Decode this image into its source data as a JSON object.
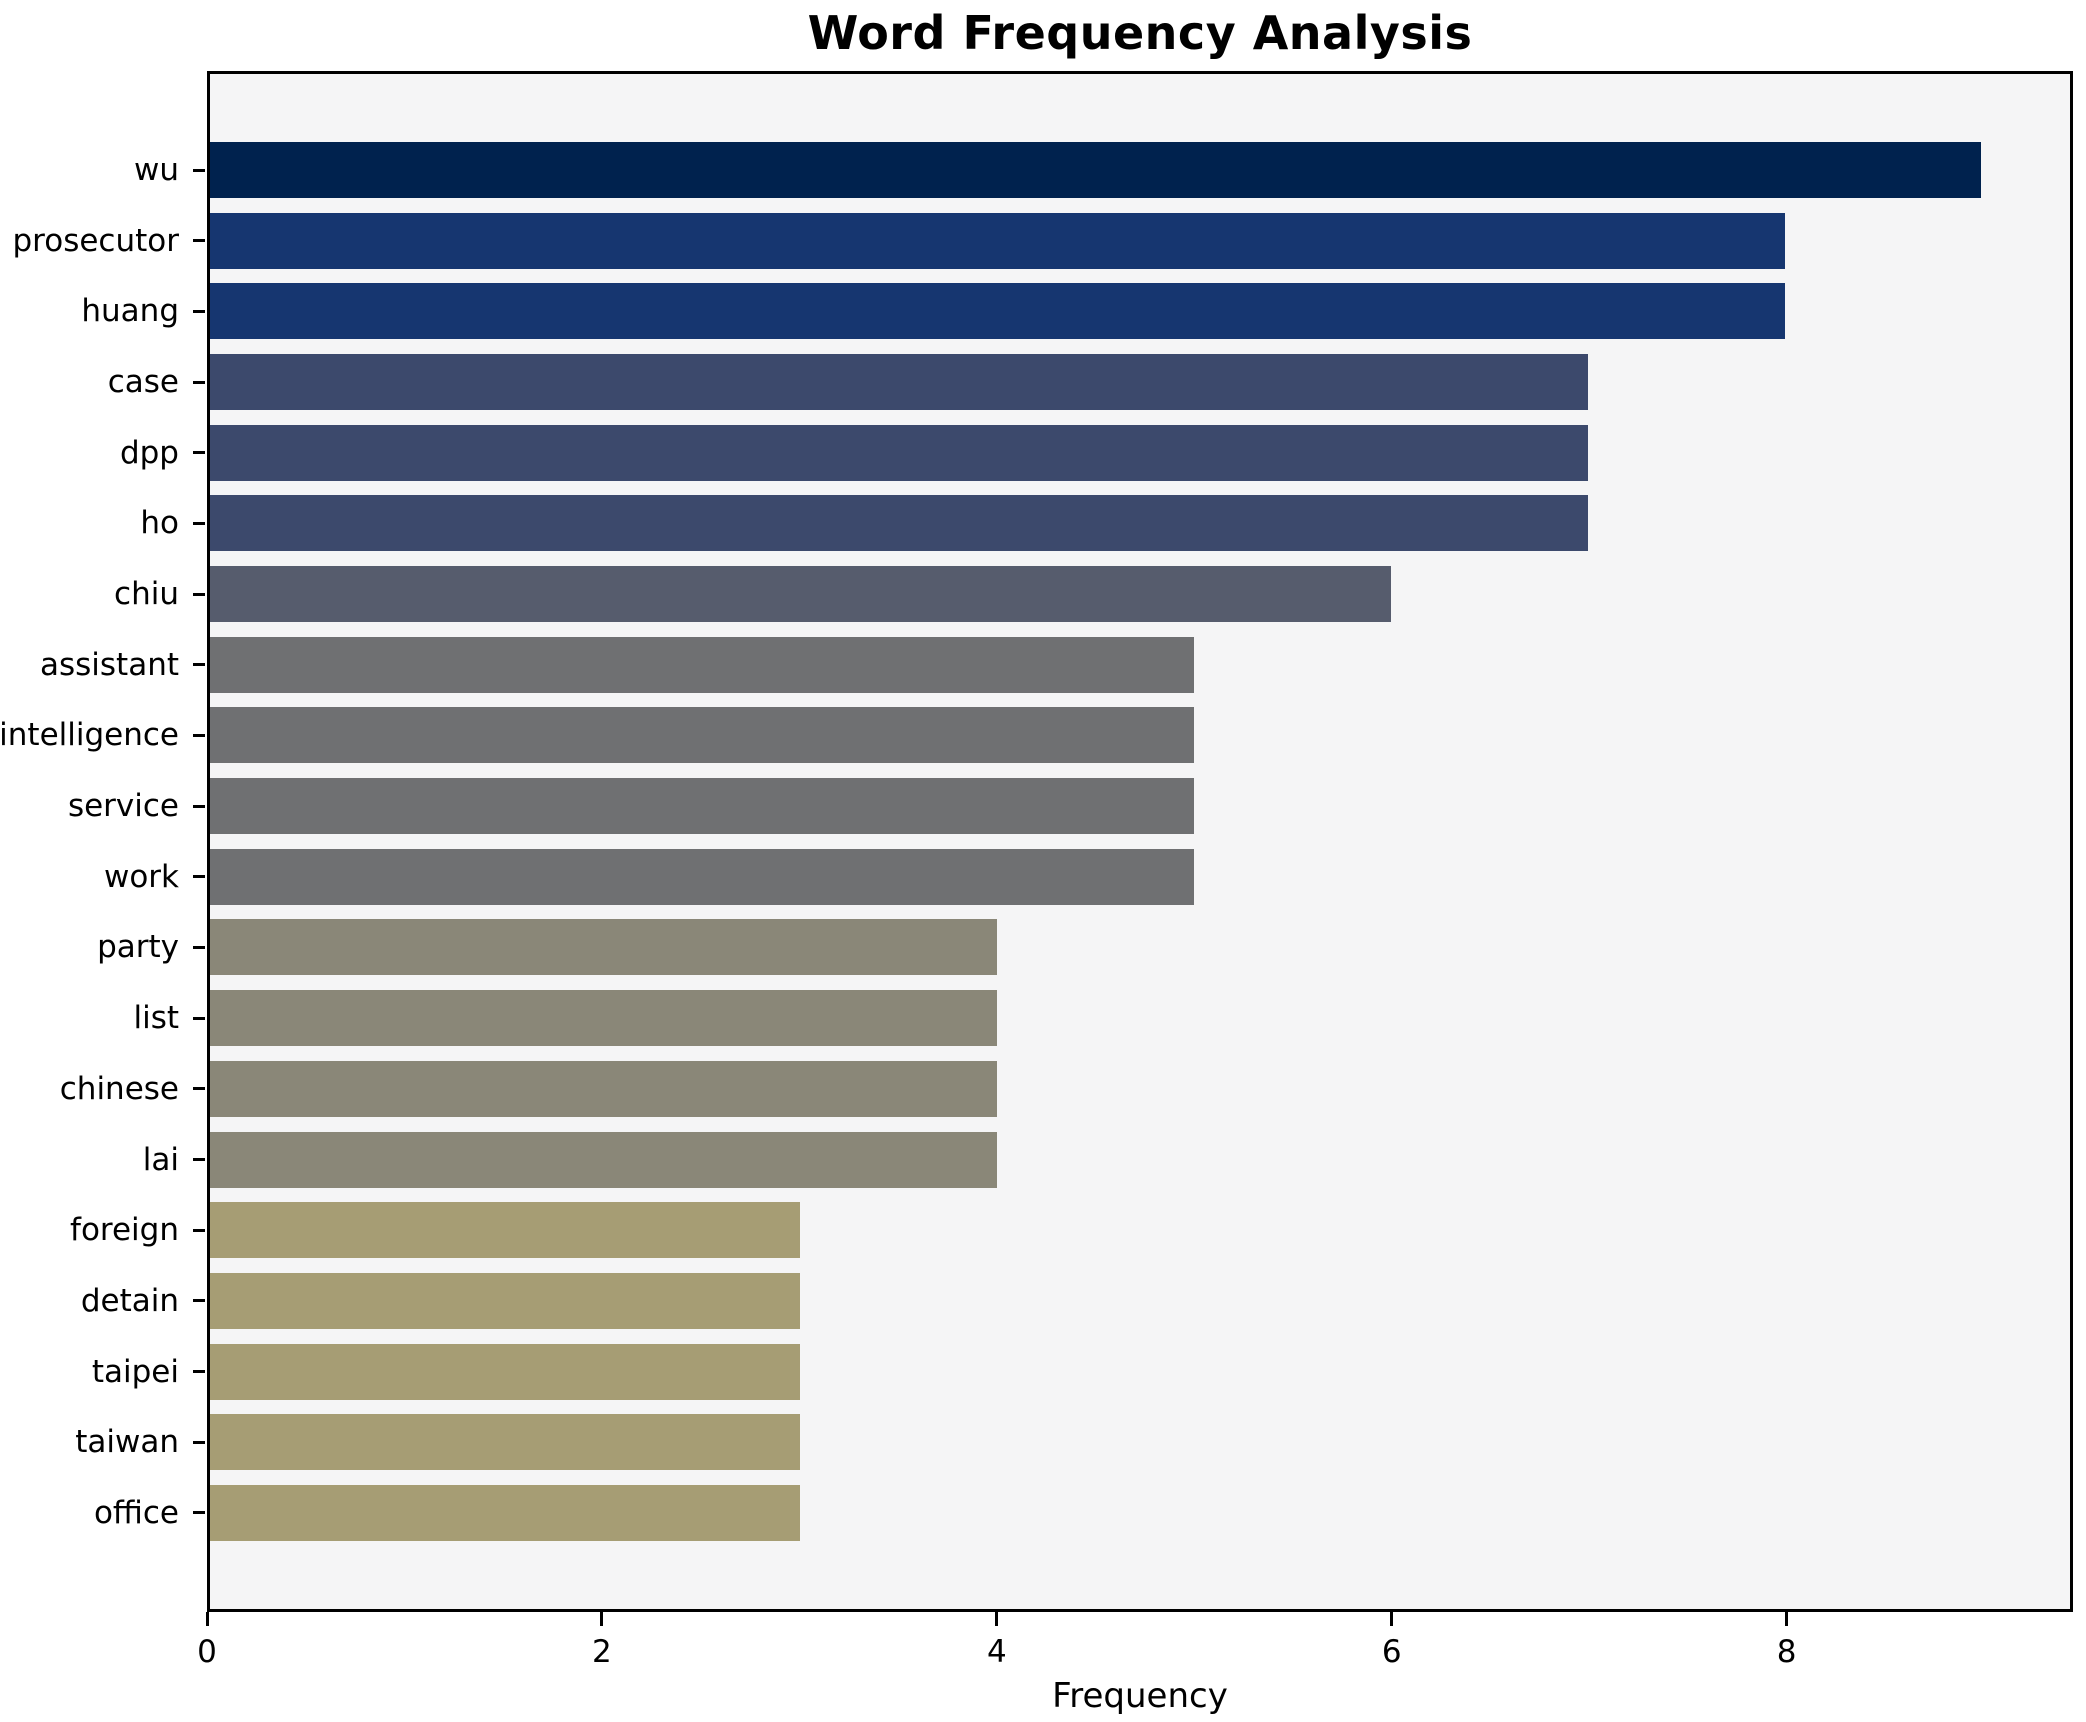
{
  "title": "Word Frequency Analysis",
  "chart_data": {
    "type": "bar",
    "orientation": "horizontal",
    "title": "Word Frequency Analysis",
    "xlabel": "Frequency",
    "ylabel": "",
    "categories": [
      "wu",
      "prosecutor",
      "huang",
      "case",
      "dpp",
      "ho",
      "chiu",
      "assistant",
      "intelligence",
      "service",
      "work",
      "party",
      "list",
      "chinese",
      "lai",
      "foreign",
      "detain",
      "taipei",
      "taiwan",
      "office"
    ],
    "values": [
      9,
      8,
      8,
      7,
      7,
      7,
      6,
      5,
      5,
      5,
      5,
      4,
      4,
      4,
      4,
      3,
      3,
      3,
      3,
      3
    ],
    "bar_colors": [
      "#00224e",
      "#163670",
      "#163670",
      "#3c496c",
      "#3c496c",
      "#3c496c",
      "#565c6d",
      "#6f7072",
      "#6f7072",
      "#6f7072",
      "#6f7072",
      "#8a8778",
      "#8a8778",
      "#8a8778",
      "#8a8778",
      "#a69d74",
      "#a69d74",
      "#a69d74",
      "#a69d74",
      "#a69d74"
    ],
    "xlim": [
      0,
      9.45
    ],
    "xticks": [
      0,
      2,
      4,
      6,
      8
    ],
    "grid": false,
    "legend": false,
    "plot_background": "#f5f5f6",
    "figure_background": "#ffffff",
    "spine_color": "#000000",
    "value_by_color_group": {
      "9": "#00224e",
      "8": "#163670",
      "7": "#3c496c",
      "6": "#565c6d",
      "5": "#6f7072",
      "4": "#8a8778",
      "3": "#a69d74"
    }
  }
}
